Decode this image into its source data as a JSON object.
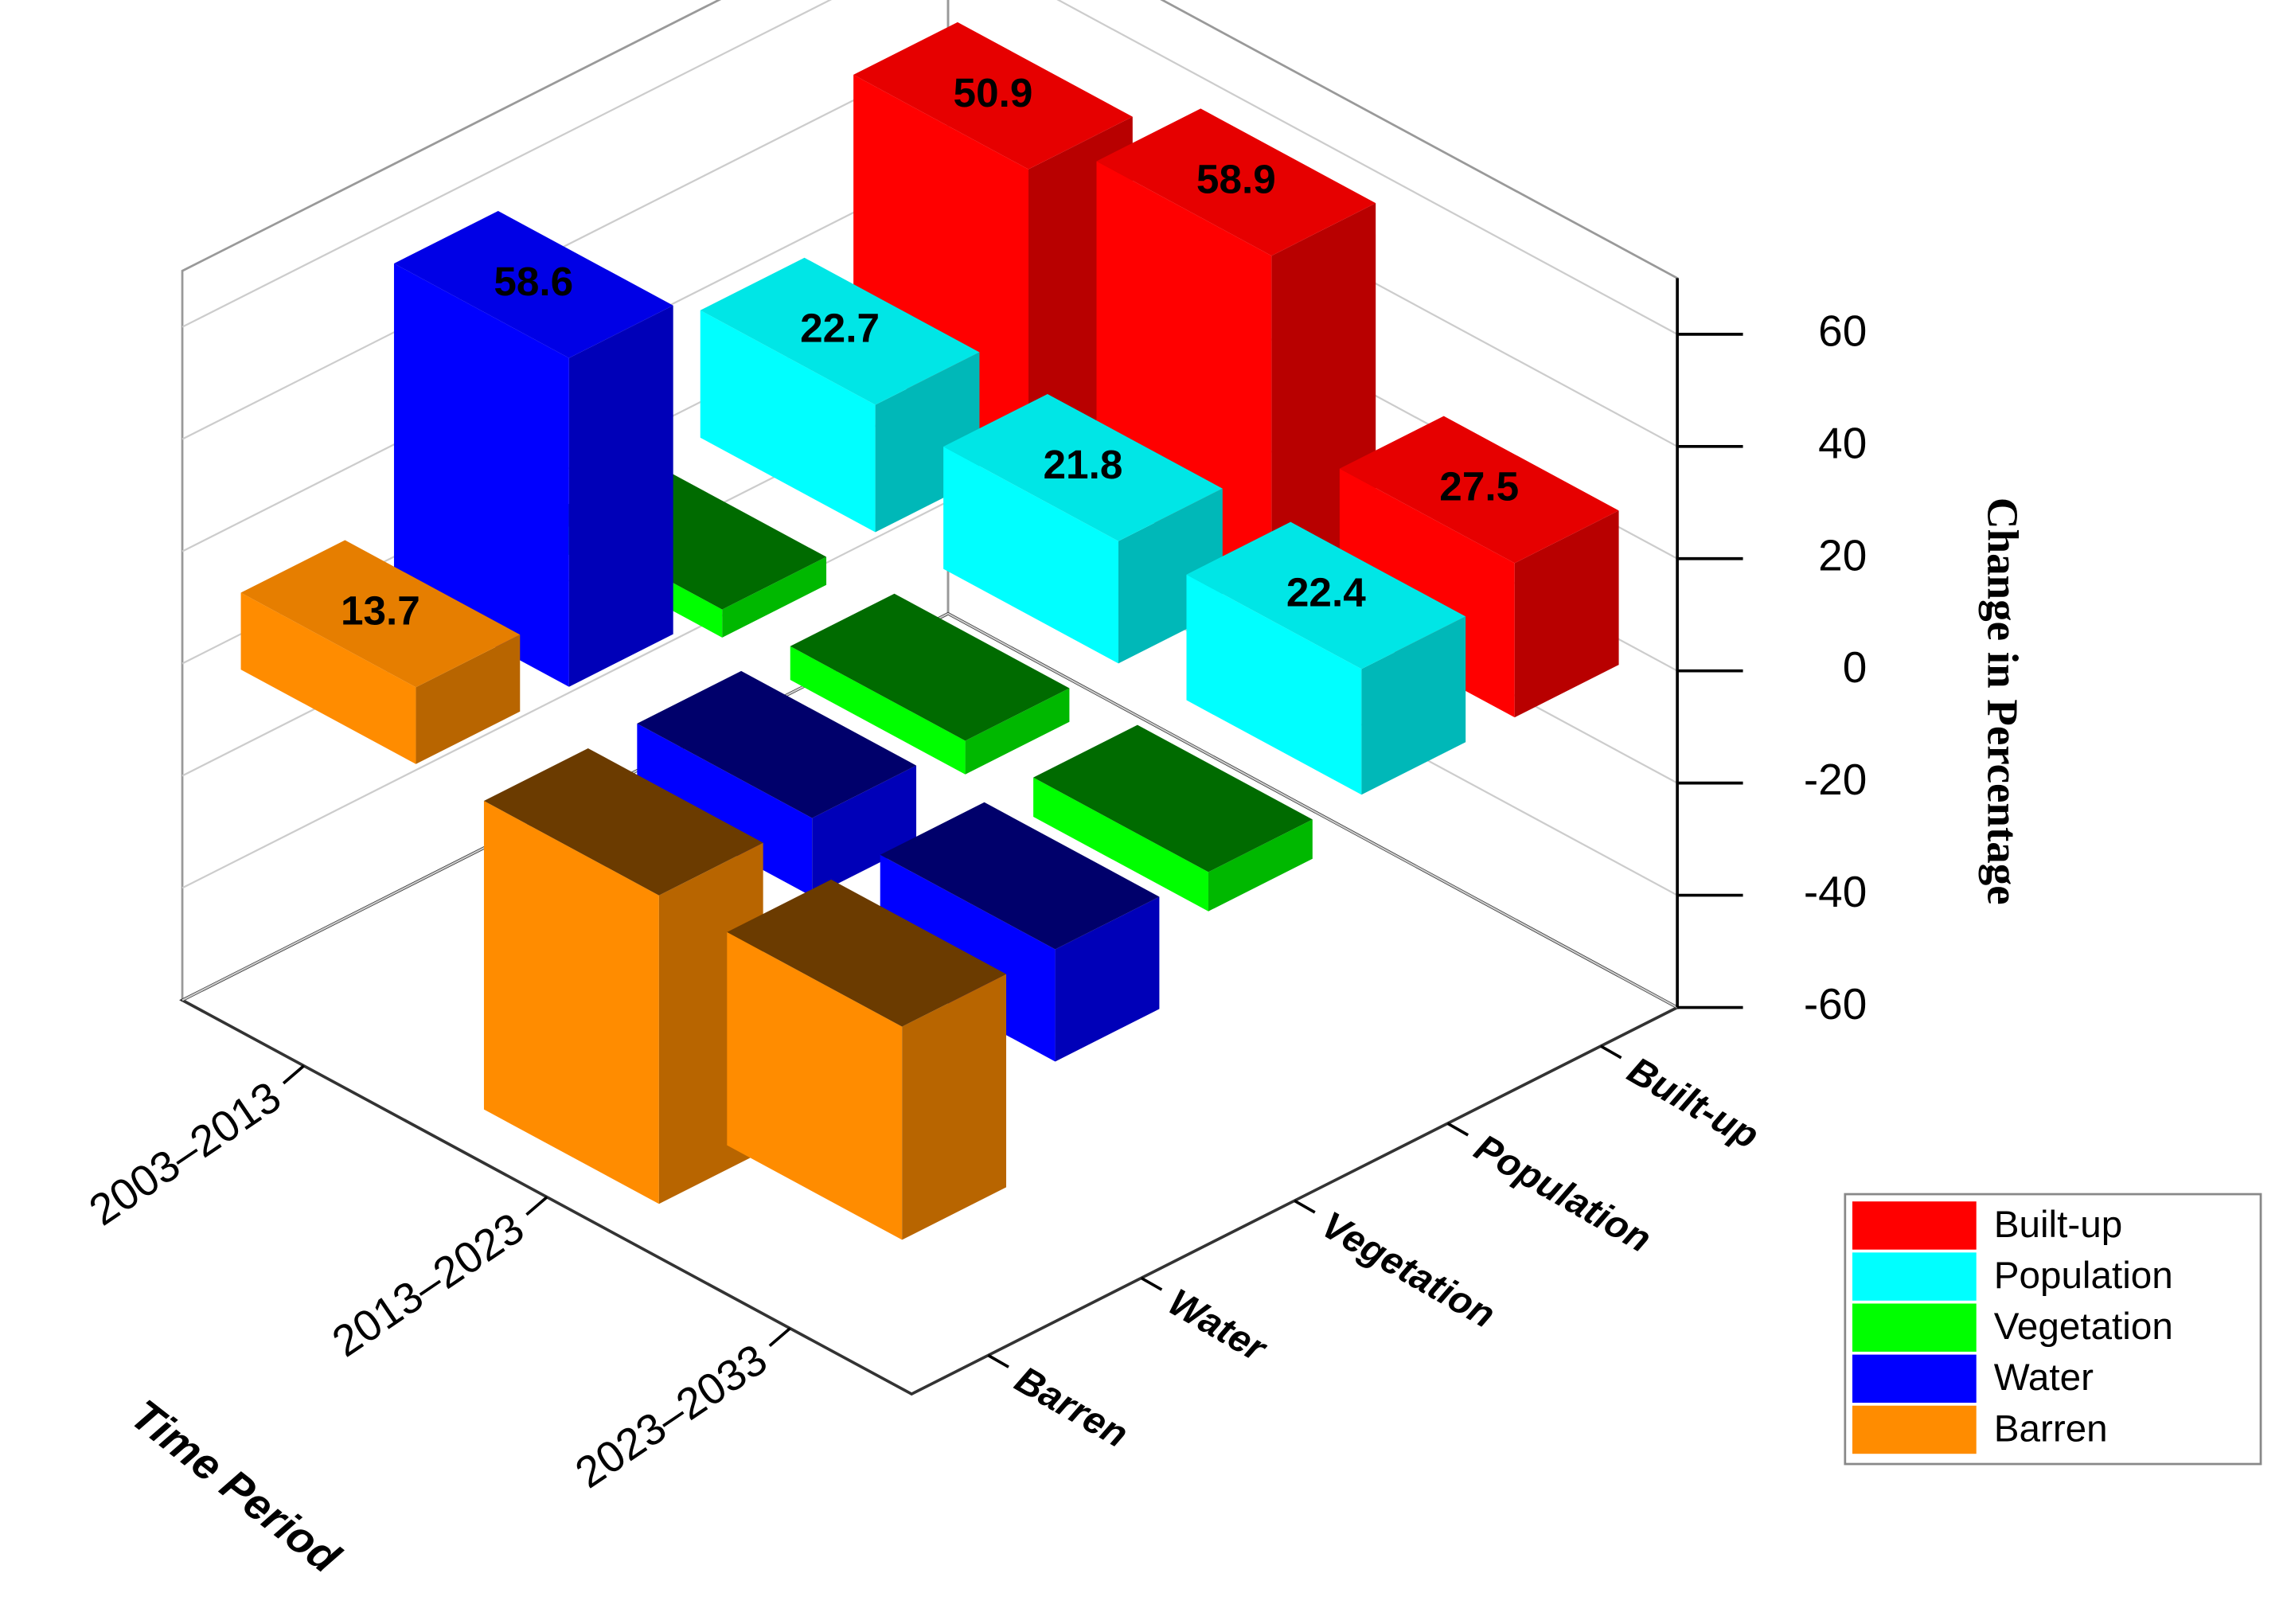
{
  "chart_data": {
    "type": "bar3d",
    "x_label": "Time Period",
    "y_label": "Change in Percentage",
    "categories": [
      "2003–2013",
      "2013–2023",
      "2023–2033"
    ],
    "series": [
      {
        "name": "Built-up",
        "color": "#ff0000",
        "values": [
          50.9,
          58.9,
          27.5
        ]
      },
      {
        "name": "Population",
        "color": "#00ffff",
        "values": [
          22.7,
          21.8,
          22.4
        ]
      },
      {
        "name": "Vegetation",
        "color": "#00ff00",
        "values": [
          -5,
          -6,
          -7
        ]
      },
      {
        "name": "Water",
        "color": "#0000ff",
        "values": [
          58.6,
          -14,
          -20
        ]
      },
      {
        "name": "Barren",
        "color": "#ff8c00",
        "values": [
          13.7,
          -55,
          -38
        ]
      }
    ],
    "labeled": [
      [
        0,
        0
      ],
      [
        0,
        1
      ],
      [
        0,
        2
      ],
      [
        1,
        0
      ],
      [
        1,
        1
      ],
      [
        1,
        2
      ],
      [
        3,
        0
      ],
      [
        4,
        0
      ]
    ],
    "ylim": [
      -60,
      70
    ],
    "yticks": [
      -60,
      -40,
      -20,
      0,
      20,
      40,
      60
    ],
    "grid": true,
    "legend": "lower right"
  }
}
